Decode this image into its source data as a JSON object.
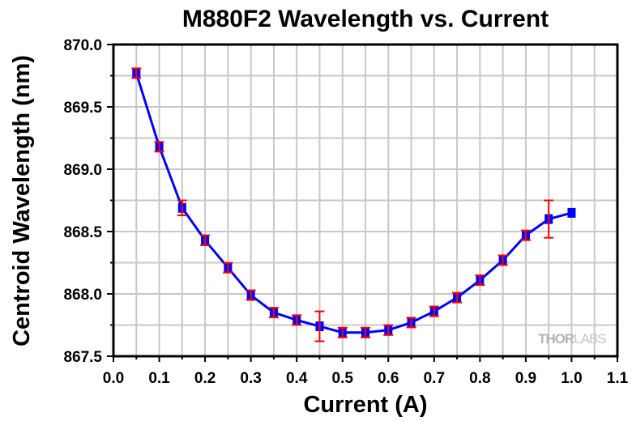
{
  "chart_data": {
    "type": "line",
    "title": "M880F2 Wavelength vs. Current",
    "xlabel": "Current (A)",
    "ylabel": "Centroid Wavelength (nm)",
    "xlim": [
      0.0,
      1.1
    ],
    "ylim": [
      867.5,
      870.0
    ],
    "x_ticks": [
      "0.0",
      "0.1",
      "0.2",
      "0.3",
      "0.4",
      "0.5",
      "0.6",
      "0.7",
      "0.8",
      "0.9",
      "1.0",
      "1.1"
    ],
    "y_ticks": [
      "867.5",
      "868.0",
      "868.5",
      "869.0",
      "869.5",
      "870.0"
    ],
    "grid": true,
    "legend": "none",
    "watermark": {
      "bold": "THOR",
      "light": "LABS"
    },
    "series": [
      {
        "name": "M880F2",
        "color": "#0000ff",
        "error_color": "#ff0000",
        "marker": "square",
        "x": [
          0.05,
          0.1,
          0.15,
          0.2,
          0.25,
          0.3,
          0.35,
          0.4,
          0.45,
          0.5,
          0.55,
          0.6,
          0.65,
          0.7,
          0.75,
          0.8,
          0.85,
          0.9,
          0.95,
          1.0
        ],
        "y": [
          869.77,
          869.18,
          868.69,
          868.43,
          868.21,
          867.99,
          867.85,
          867.79,
          867.74,
          867.69,
          867.69,
          867.71,
          867.77,
          867.86,
          867.97,
          868.11,
          868.27,
          868.47,
          868.6,
          868.65
        ],
        "yerr": [
          0.03,
          0.03,
          0.06,
          0.04,
          0.01,
          0.01,
          0.02,
          0.01,
          0.12,
          0.02,
          0.01,
          0.04,
          0.01,
          0.03,
          0.01,
          0.03,
          0.01,
          0.03,
          0.15,
          0
        ]
      }
    ]
  }
}
